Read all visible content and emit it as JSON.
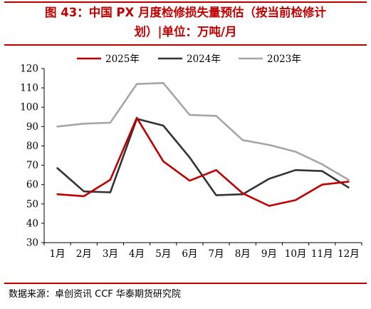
{
  "header": {
    "title_line1": "图 43：中国 PX 月度检修损失量预估（按当前检修计",
    "title_line2": "划）|单位：万吨/月"
  },
  "footer": {
    "source": "数据来源：卓创资讯 CCF 华泰期货研究院"
  },
  "colors": {
    "accent": "#c00000",
    "series_2025": "#c00000",
    "series_2024": "#333333",
    "series_2023": "#a6a6a6"
  },
  "chart_data": {
    "type": "line",
    "categories": [
      "1月",
      "2月",
      "3月",
      "4月",
      "5月",
      "6月",
      "7月",
      "8月",
      "9月",
      "10月",
      "11月",
      "12月"
    ],
    "ylim": [
      30,
      120
    ],
    "yticks": [
      30,
      40,
      50,
      60,
      70,
      80,
      90,
      100,
      110,
      120
    ],
    "legend_position": "top-center",
    "grid": false,
    "series": [
      {
        "name": "2025年",
        "color": "#c00000",
        "values": [
          55.0,
          54.0,
          62.5,
          94.5,
          72.0,
          62.0,
          67.5,
          55.5,
          49.0,
          52.0,
          60.0,
          61.5
        ]
      },
      {
        "name": "2024年",
        "color": "#333333",
        "values": [
          68.5,
          56.5,
          56.0,
          94.0,
          90.5,
          74.0,
          54.5,
          55.0,
          63.0,
          67.5,
          67.0,
          58.5
        ]
      },
      {
        "name": "2023年",
        "color": "#a6a6a6",
        "values": [
          90.0,
          91.5,
          92.0,
          112.0,
          112.5,
          96.0,
          95.5,
          83.0,
          80.5,
          77.0,
          70.5,
          62.5
        ]
      }
    ]
  }
}
